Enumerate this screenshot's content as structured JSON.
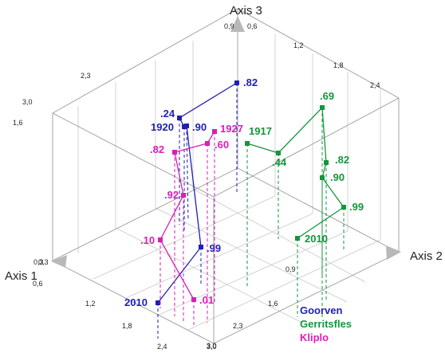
{
  "chart_data": {
    "type": "scatter",
    "title": "",
    "axes": {
      "x": {
        "title": "Axis 1",
        "ticks": [
          "0,3",
          "0,6",
          "1,2",
          "1,8",
          "2,4",
          "3,0"
        ]
      },
      "y": {
        "title": "Axis 2",
        "ticks": [
          "3,0",
          "2,3",
          "1,6",
          "0,9"
        ]
      },
      "z": {
        "title": "Axis 3",
        "ticks": [
          "0,3",
          "1,6",
          "2,3",
          "3,0",
          "0,9",
          "0,6",
          "1,2",
          "1,8",
          "2,4"
        ]
      }
    },
    "grid": true,
    "legend_position": "bottom-right",
    "series": [
      {
        "name": "Goorven",
        "color": "#1f1fb4",
        "points": [
          {
            "label": ".82"
          },
          {
            "label": ".24"
          },
          {
            "label": "1920"
          },
          {
            "label": ".90"
          },
          {
            "label": ".99"
          },
          {
            "label": "2010"
          }
        ]
      },
      {
        "name": "Gerritsfles",
        "color": "#14963c",
        "points": [
          {
            "label": "1917"
          },
          {
            "label": ".44"
          },
          {
            "label": ".69"
          },
          {
            "label": ".82"
          },
          {
            "label": ".90"
          },
          {
            "label": ".99"
          },
          {
            "label": "2010"
          }
        ]
      },
      {
        "name": "Kliplo",
        "color": "#d81fb8",
        "points": [
          {
            "label": "1927"
          },
          {
            "label": ".60"
          },
          {
            "label": ".82"
          },
          {
            "label": ".92"
          },
          {
            "label": ".10"
          },
          {
            "label": ".01"
          }
        ]
      }
    ]
  }
}
